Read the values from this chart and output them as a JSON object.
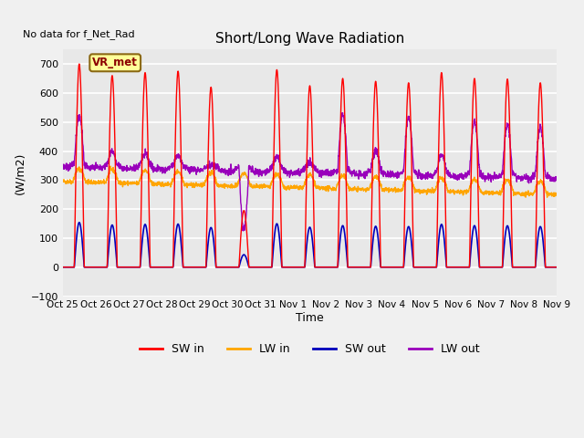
{
  "title": "Short/Long Wave Radiation",
  "ylabel": "(W/m2)",
  "xlabel": "Time",
  "top_left_text": "No data for f_Net_Rad",
  "station_label": "VR_met",
  "ylim": [
    -100,
    750
  ],
  "yticks": [
    -100,
    0,
    100,
    200,
    300,
    400,
    500,
    600,
    700
  ],
  "x_tick_labels": [
    "Oct 25",
    "Oct 26",
    "Oct 27",
    "Oct 28",
    "Oct 29",
    "Oct 30",
    "Oct 31",
    "Nov 1",
    "Nov 2",
    "Nov 3",
    "Nov 4",
    "Nov 5",
    "Nov 6",
    "Nov 7",
    "Nov 8",
    "Nov 9"
  ],
  "colors": {
    "SW_in": "#FF0000",
    "LW_in": "#FFA500",
    "SW_out": "#0000BB",
    "LW_out": "#9900BB"
  },
  "legend_labels": [
    "SW in",
    "LW in",
    "SW out",
    "LW out"
  ],
  "background_color": "#E8E8E8",
  "fig_background_color": "#F0F0F0",
  "grid_color": "#FFFFFF"
}
